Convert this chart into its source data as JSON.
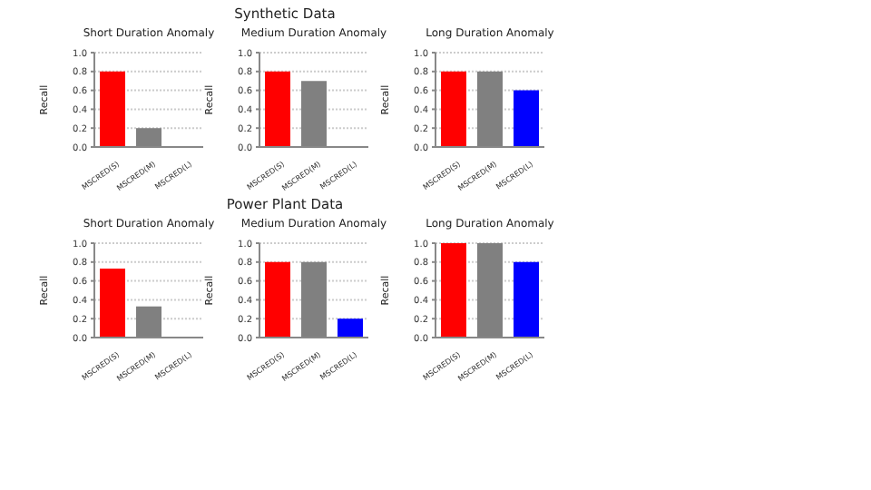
{
  "chart_data": [
    {
      "type": "bar",
      "title": "Short Duration Anomaly",
      "ylabel": "Recall",
      "categories": [
        "MSCRED(S)",
        "MSCRED(M)",
        "MSCRED(L)"
      ],
      "values": [
        0.8,
        0.2,
        0
      ],
      "colors": [
        "#ff0000",
        "#808080",
        "#0000ff"
      ],
      "ylim": [
        0,
        1
      ],
      "yticks": [
        {
          "value": 0,
          "label": "0.0"
        },
        {
          "value": 0.2,
          "label": "0.2"
        },
        {
          "value": 0.4,
          "label": "0.4"
        },
        {
          "value": 0.6,
          "label": "0.6"
        },
        {
          "value": 0.8,
          "label": "0.8"
        },
        {
          "value": 1,
          "label": "1.0"
        }
      ],
      "grid": "y"
    },
    {
      "type": "bar",
      "title": "Medium Duration Anomaly",
      "annotations": [
        "Synthetic Data"
      ],
      "ylabel": "Recall",
      "categories": [
        "MSCRED(S)",
        "MSCRED(M)",
        "MSCRED(L)"
      ],
      "values": [
        0.8,
        0.7,
        0
      ],
      "colors": [
        "#ff0000",
        "#808080",
        "#0000ff"
      ],
      "ylim": [
        0,
        1
      ],
      "yticks": [
        {
          "value": 0,
          "label": "0.0"
        },
        {
          "value": 0.2,
          "label": "0.2"
        },
        {
          "value": 0.4,
          "label": "0.4"
        },
        {
          "value": 0.6,
          "label": "0.6"
        },
        {
          "value": 0.8,
          "label": "0.8"
        },
        {
          "value": 1,
          "label": "1.0"
        }
      ],
      "grid": "y"
    },
    {
      "type": "bar",
      "title": "Long Duration Anomaly",
      "ylabel": "Recall",
      "categories": [
        "MSCRED(S)",
        "MSCRED(M)",
        "MSCRED(L)"
      ],
      "values": [
        0.8,
        0.8,
        0.6
      ],
      "colors": [
        "#ff0000",
        "#808080",
        "#0000ff"
      ],
      "ylim": [
        0,
        1
      ],
      "yticks": [
        {
          "value": 0,
          "label": "0.0"
        },
        {
          "value": 0.2,
          "label": "0.2"
        },
        {
          "value": 0.4,
          "label": "0.4"
        },
        {
          "value": 0.6,
          "label": "0.6"
        },
        {
          "value": 0.8,
          "label": "0.8"
        },
        {
          "value": 1,
          "label": "1.0"
        }
      ],
      "grid": "y"
    },
    {
      "type": "bar",
      "title": "Short Duration Anomaly",
      "ylabel": "Recall",
      "categories": [
        "MSCRED(S)",
        "MSCRED(M)",
        "MSCRED(L)"
      ],
      "values": [
        0.73,
        0.33,
        0
      ],
      "colors": [
        "#ff0000",
        "#808080",
        "#0000ff"
      ],
      "ylim": [
        0,
        1
      ],
      "yticks": [
        {
          "value": 0,
          "label": "0.0"
        },
        {
          "value": 0.2,
          "label": "0.2"
        },
        {
          "value": 0.4,
          "label": "0.4"
        },
        {
          "value": 0.6,
          "label": "0.6"
        },
        {
          "value": 0.8,
          "label": "0.8"
        },
        {
          "value": 1,
          "label": "1.0"
        }
      ],
      "grid": "y"
    },
    {
      "type": "bar",
      "title": "Medium Duration Anomaly",
      "annotations": [
        "Power Plant Data"
      ],
      "ylabel": "Recall",
      "categories": [
        "MSCRED(S)",
        "MSCRED(M)",
        "MSCRED(L)"
      ],
      "values": [
        0.8,
        0.8,
        0.2
      ],
      "colors": [
        "#ff0000",
        "#808080",
        "#0000ff"
      ],
      "ylim": [
        0,
        1
      ],
      "yticks": [
        {
          "value": 0,
          "label": "0.0"
        },
        {
          "value": 0.2,
          "label": "0.2"
        },
        {
          "value": 0.4,
          "label": "0.4"
        },
        {
          "value": 0.6,
          "label": "0.6"
        },
        {
          "value": 0.8,
          "label": "0.8"
        },
        {
          "value": 1,
          "label": "1.0"
        }
      ],
      "grid": "y"
    },
    {
      "type": "bar",
      "title": "Long Duration Anomaly",
      "ylabel": "Recall",
      "categories": [
        "MSCRED(S)",
        "MSCRED(M)",
        "MSCRED(L)"
      ],
      "values": [
        1.0,
        1.0,
        0.8
      ],
      "colors": [
        "#ff0000",
        "#808080",
        "#0000ff"
      ],
      "ylim": [
        0,
        1
      ],
      "yticks": [
        {
          "value": 0,
          "label": "0.0"
        },
        {
          "value": 0.2,
          "label": "0.2"
        },
        {
          "value": 0.4,
          "label": "0.4"
        },
        {
          "value": 0.6,
          "label": "0.6"
        },
        {
          "value": 0.8,
          "label": "0.8"
        },
        {
          "value": 1,
          "label": "1.0"
        }
      ],
      "grid": "y"
    }
  ]
}
